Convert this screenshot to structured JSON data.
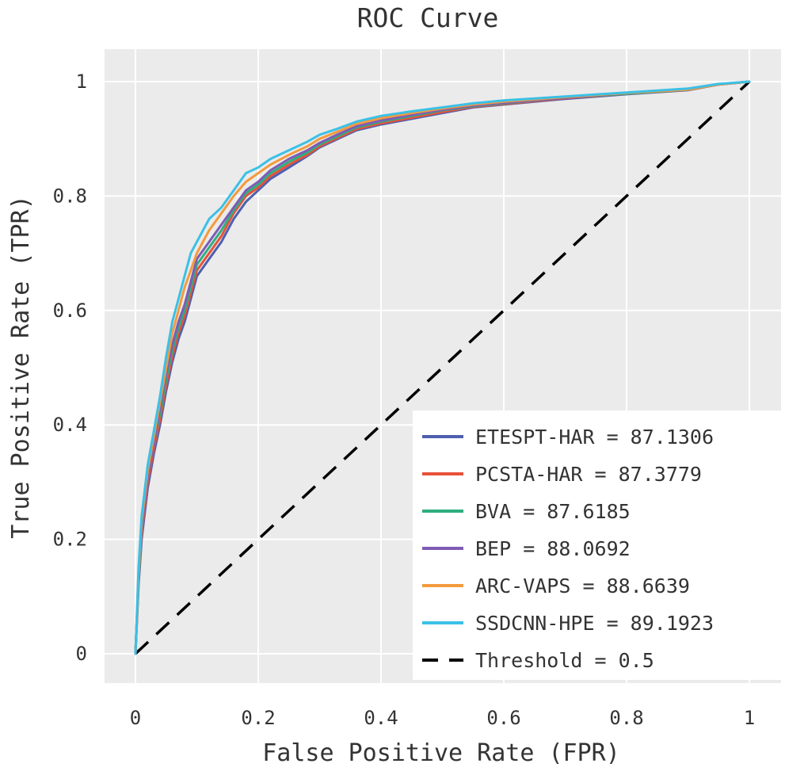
{
  "chart_data": {
    "type": "line",
    "title": "ROC Curve",
    "xlabel": "False Positive Rate (FPR)",
    "ylabel": "True Positive Rate (TPR)",
    "xlim": [
      -0.05,
      1.05
    ],
    "ylim": [
      -0.05,
      1.05
    ],
    "xticks": [
      0,
      0.2,
      0.4,
      0.6,
      0.8,
      1
    ],
    "xtick_labels": [
      "0",
      "0.2",
      "0.4",
      "0.6",
      "0.8",
      "1"
    ],
    "yticks": [
      0,
      0.2,
      0.4,
      0.6,
      0.8,
      1
    ],
    "ytick_labels": [
      "0",
      "0.2",
      "0.4",
      "0.6",
      "0.8",
      "1"
    ],
    "grid": true,
    "background": "#ebebeb",
    "legend_position": "bottom-right",
    "series": [
      {
        "name": "ETESPT-HAR = 87.1306",
        "color": "#4e5fb0",
        "x": [
          0,
          0.005,
          0.01,
          0.02,
          0.03,
          0.04,
          0.05,
          0.06,
          0.07,
          0.08,
          0.09,
          0.1,
          0.12,
          0.14,
          0.16,
          0.18,
          0.2,
          0.22,
          0.25,
          0.28,
          0.3,
          0.33,
          0.36,
          0.4,
          0.45,
          0.5,
          0.55,
          0.6,
          0.7,
          0.8,
          0.9,
          0.95,
          1
        ],
        "y": [
          0,
          0.12,
          0.2,
          0.29,
          0.35,
          0.4,
          0.46,
          0.51,
          0.55,
          0.58,
          0.62,
          0.66,
          0.69,
          0.72,
          0.76,
          0.79,
          0.81,
          0.83,
          0.85,
          0.87,
          0.885,
          0.9,
          0.915,
          0.925,
          0.935,
          0.945,
          0.955,
          0.96,
          0.97,
          0.978,
          0.985,
          0.995,
          1
        ]
      },
      {
        "name": "PCSTA-HAR = 87.3779",
        "color": "#e8513a",
        "x": [
          0,
          0.005,
          0.01,
          0.02,
          0.03,
          0.04,
          0.05,
          0.06,
          0.07,
          0.08,
          0.09,
          0.1,
          0.12,
          0.14,
          0.16,
          0.18,
          0.2,
          0.22,
          0.25,
          0.28,
          0.3,
          0.33,
          0.36,
          0.4,
          0.45,
          0.5,
          0.55,
          0.6,
          0.7,
          0.8,
          0.9,
          0.95,
          1
        ],
        "y": [
          0,
          0.13,
          0.21,
          0.3,
          0.36,
          0.41,
          0.47,
          0.52,
          0.56,
          0.59,
          0.63,
          0.67,
          0.7,
          0.73,
          0.77,
          0.8,
          0.815,
          0.835,
          0.855,
          0.872,
          0.887,
          0.902,
          0.917,
          0.927,
          0.937,
          0.947,
          0.956,
          0.961,
          0.971,
          0.979,
          0.986,
          0.995,
          1
        ]
      },
      {
        "name": "BVA = 87.6185",
        "color": "#2fae7e",
        "x": [
          0,
          0.005,
          0.01,
          0.02,
          0.03,
          0.04,
          0.05,
          0.06,
          0.07,
          0.08,
          0.09,
          0.1,
          0.12,
          0.14,
          0.16,
          0.18,
          0.2,
          0.22,
          0.25,
          0.28,
          0.3,
          0.33,
          0.36,
          0.4,
          0.45,
          0.5,
          0.55,
          0.6,
          0.7,
          0.8,
          0.9,
          0.95,
          1
        ],
        "y": [
          0,
          0.13,
          0.22,
          0.31,
          0.37,
          0.42,
          0.48,
          0.53,
          0.57,
          0.6,
          0.64,
          0.68,
          0.71,
          0.74,
          0.775,
          0.805,
          0.82,
          0.84,
          0.86,
          0.876,
          0.89,
          0.905,
          0.92,
          0.93,
          0.94,
          0.95,
          0.957,
          0.962,
          0.972,
          0.979,
          0.986,
          0.995,
          1
        ]
      },
      {
        "name": "BEP = 88.0692",
        "color": "#7f5bb5",
        "x": [
          0,
          0.005,
          0.01,
          0.02,
          0.03,
          0.04,
          0.05,
          0.06,
          0.07,
          0.08,
          0.09,
          0.1,
          0.12,
          0.14,
          0.16,
          0.18,
          0.2,
          0.22,
          0.25,
          0.28,
          0.3,
          0.33,
          0.36,
          0.4,
          0.45,
          0.5,
          0.55,
          0.6,
          0.7,
          0.8,
          0.9,
          0.95,
          1
        ],
        "y": [
          0,
          0.14,
          0.22,
          0.31,
          0.37,
          0.43,
          0.49,
          0.54,
          0.58,
          0.61,
          0.65,
          0.69,
          0.72,
          0.75,
          0.78,
          0.81,
          0.825,
          0.845,
          0.865,
          0.88,
          0.893,
          0.908,
          0.922,
          0.932,
          0.942,
          0.951,
          0.958,
          0.963,
          0.972,
          0.98,
          0.987,
          0.995,
          1
        ]
      },
      {
        "name": "ARC-VAPS = 88.6639",
        "color": "#f39a3e",
        "x": [
          0,
          0.005,
          0.01,
          0.02,
          0.03,
          0.04,
          0.05,
          0.06,
          0.07,
          0.08,
          0.09,
          0.1,
          0.12,
          0.14,
          0.16,
          0.18,
          0.2,
          0.22,
          0.25,
          0.28,
          0.3,
          0.33,
          0.36,
          0.4,
          0.45,
          0.5,
          0.55,
          0.6,
          0.7,
          0.8,
          0.9,
          0.95,
          1
        ],
        "y": [
          0,
          0.14,
          0.23,
          0.32,
          0.38,
          0.44,
          0.5,
          0.56,
          0.6,
          0.64,
          0.67,
          0.7,
          0.74,
          0.77,
          0.8,
          0.825,
          0.84,
          0.855,
          0.872,
          0.887,
          0.9,
          0.913,
          0.926,
          0.936,
          0.945,
          0.953,
          0.96,
          0.965,
          0.973,
          0.98,
          0.986,
          0.995,
          1
        ]
      },
      {
        "name": "SSDCNN-HPE = 89.1923",
        "color": "#3bc0e6",
        "x": [
          0,
          0.005,
          0.01,
          0.02,
          0.03,
          0.04,
          0.05,
          0.06,
          0.07,
          0.08,
          0.09,
          0.1,
          0.12,
          0.14,
          0.16,
          0.18,
          0.2,
          0.22,
          0.25,
          0.28,
          0.3,
          0.33,
          0.36,
          0.4,
          0.45,
          0.5,
          0.55,
          0.6,
          0.7,
          0.8,
          0.9,
          0.95,
          1
        ],
        "y": [
          0,
          0.15,
          0.24,
          0.33,
          0.39,
          0.45,
          0.52,
          0.58,
          0.62,
          0.66,
          0.7,
          0.72,
          0.76,
          0.78,
          0.81,
          0.84,
          0.85,
          0.865,
          0.88,
          0.895,
          0.907,
          0.918,
          0.93,
          0.94,
          0.948,
          0.955,
          0.962,
          0.967,
          0.974,
          0.981,
          0.988,
          0.996,
          1
        ]
      }
    ],
    "threshold": {
      "name": "Threshold = 0.5",
      "color": "#000000",
      "x": [
        0,
        1
      ],
      "y": [
        0,
        1
      ]
    }
  }
}
